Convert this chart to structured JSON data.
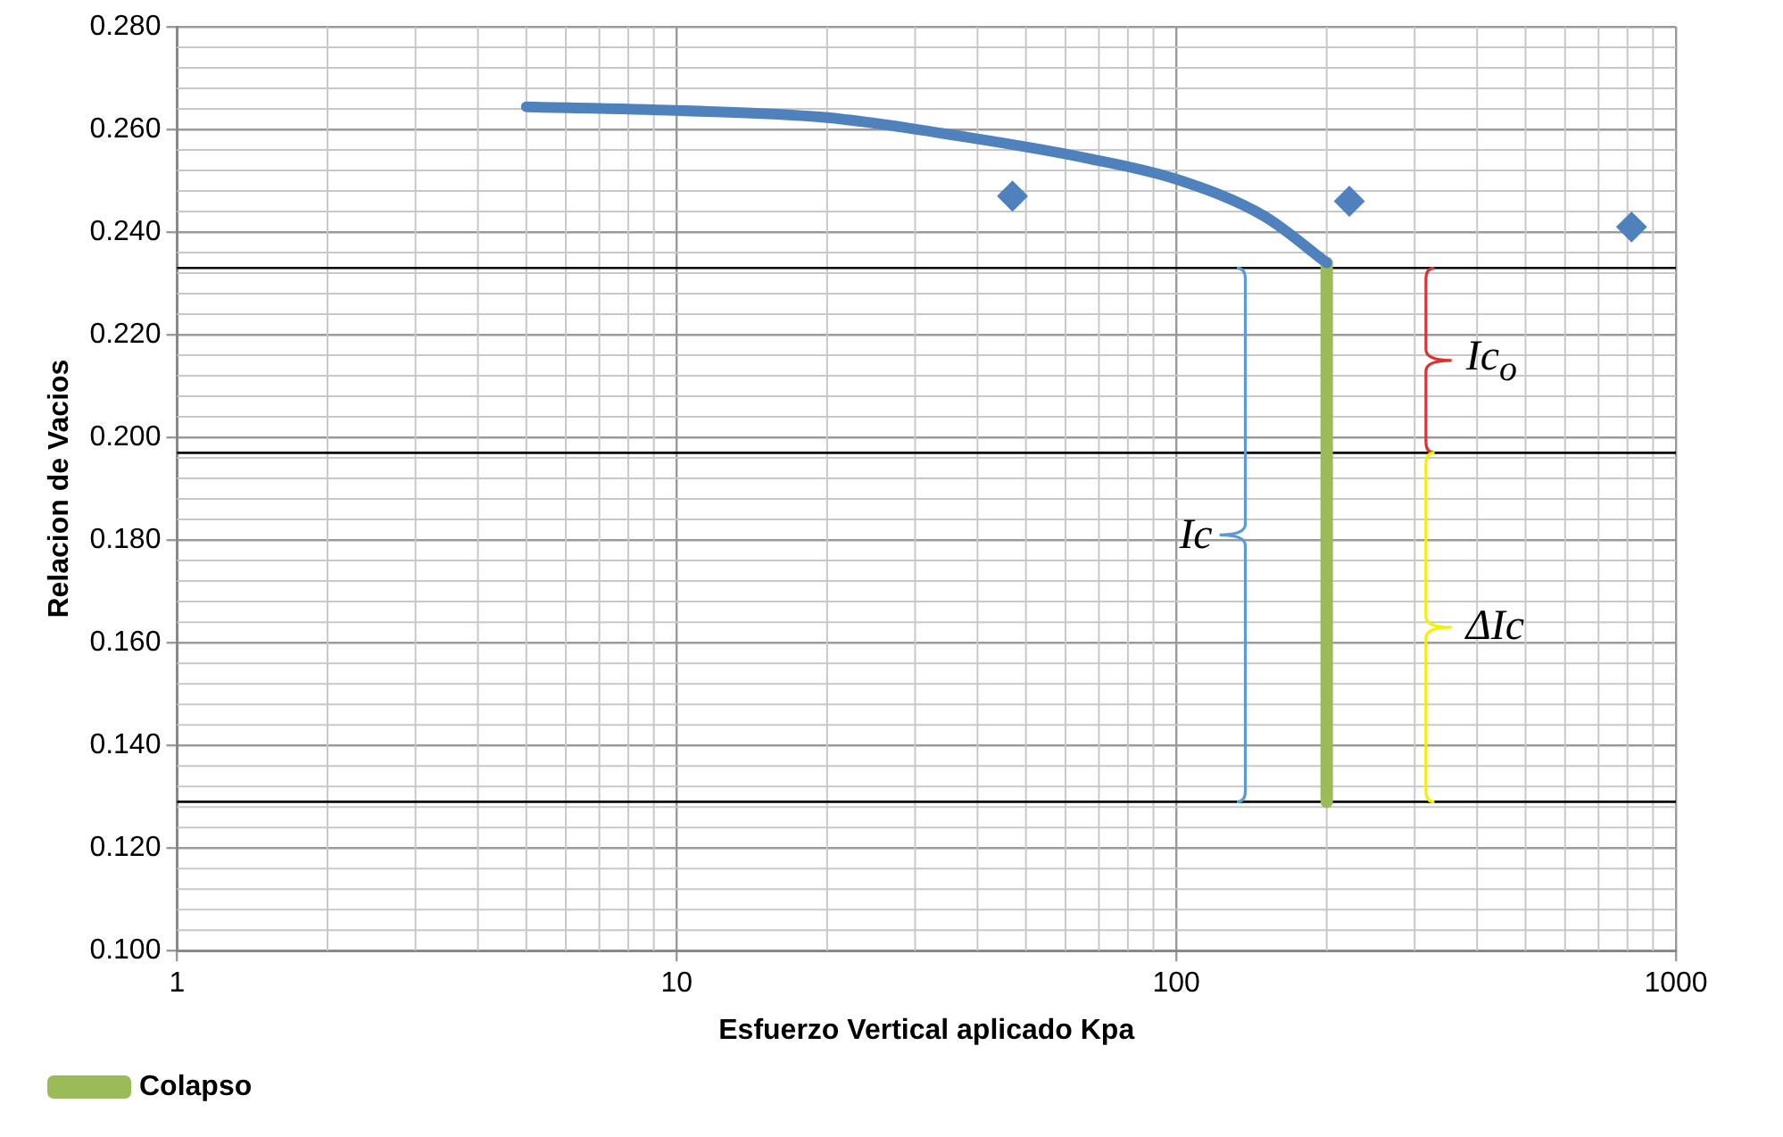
{
  "chart_data": {
    "type": "line",
    "xlabel": "Esfuerzo Vertical aplicado Kpa",
    "ylabel": "Relacion de Vacios",
    "log": "x",
    "grid": true,
    "legend": "bottom left",
    "xlim": [
      1,
      1000
    ],
    "xticks": [
      1,
      10,
      100,
      1000
    ],
    "ylim": [
      0.1,
      0.28
    ],
    "yticks": [
      {
        "value": 0.1,
        "label": "0.100"
      },
      {
        "value": 0.12,
        "label": "0.120"
      },
      {
        "value": 0.14,
        "label": "0.140"
      },
      {
        "value": 0.16,
        "label": "0.160"
      },
      {
        "value": 0.18,
        "label": "0.180"
      },
      {
        "value": 0.2,
        "label": "0.200"
      },
      {
        "value": 0.22,
        "label": "0.220"
      },
      {
        "value": 0.24,
        "label": "0.240"
      },
      {
        "value": 0.26,
        "label": "0.260"
      },
      {
        "value": 0.28,
        "label": "0.280"
      }
    ],
    "series": [
      {
        "color": "#4f81bd",
        "marker": "none",
        "x": [
          5,
          10,
          20,
          38,
          67,
          100,
          150,
          200
        ],
        "values": [
          0.2644,
          0.2637,
          0.2623,
          0.2585,
          0.2543,
          0.2503,
          0.2431,
          0.234
        ]
      },
      {
        "type": "scatter",
        "color": "#4f81bd",
        "marker": "diamond",
        "x": [
          47,
          222,
          815
        ],
        "values": [
          0.247,
          0.246,
          0.241
        ]
      },
      {
        "name": "Colapso",
        "color": "#9bbb59",
        "marker": "none",
        "x": [
          200,
          200
        ],
        "values": [
          0.234,
          0.129
        ]
      }
    ],
    "ref_lines": [
      {
        "axis": "y",
        "value": 0.233,
        "color": "#000000"
      },
      {
        "axis": "y",
        "value": 0.197,
        "color": "#000000"
      },
      {
        "axis": "y",
        "value": 0.129,
        "color": "#000000"
      }
    ],
    "annotations": [
      "Ic",
      "Ic$_{o}$",
      "ΔIc"
    ]
  }
}
